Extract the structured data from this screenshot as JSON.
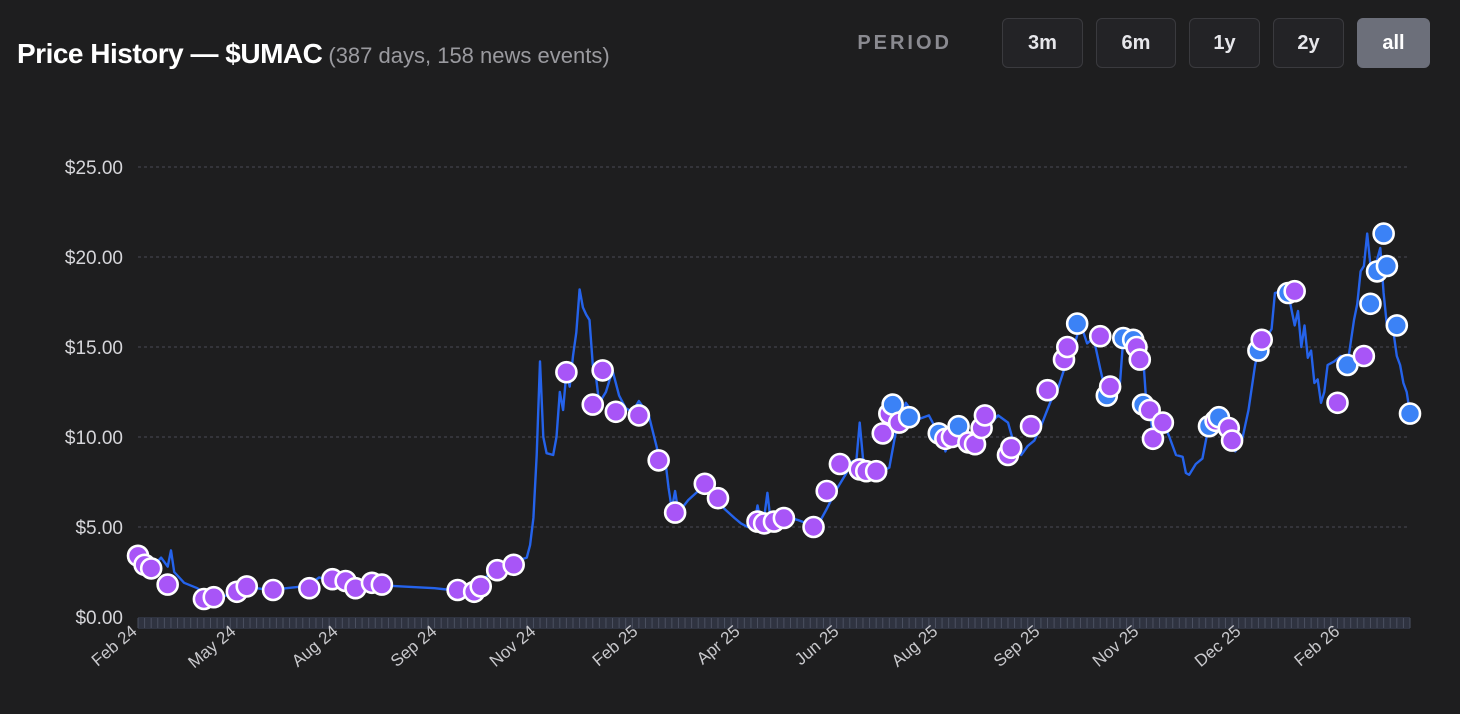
{
  "header": {
    "title": "Price History — $UMAC",
    "subtitle": "(387 days, 158 news events)"
  },
  "period": {
    "label": "PERIOD",
    "options": [
      "3m",
      "6m",
      "1y",
      "2y",
      "all"
    ],
    "selected": "all"
  },
  "colors": {
    "background": "#1e1e1f",
    "line": "#2563eb",
    "marker_purple": "#a855f7",
    "marker_blue": "#3b82f6",
    "marker_stroke": "#ffffff",
    "grid": "#4a4a55"
  },
  "chart_data": {
    "type": "line",
    "ylim": [
      0,
      25
    ],
    "yticks": [
      {
        "value": 0,
        "label": "$0.00"
      },
      {
        "value": 5,
        "label": "$5.00"
      },
      {
        "value": 10,
        "label": "$10.00"
      },
      {
        "value": 15,
        "label": "$15.00"
      },
      {
        "value": 20,
        "label": "$20.00"
      },
      {
        "value": 25,
        "label": "$25.00"
      }
    ],
    "xticks": [
      {
        "index": 0,
        "label": "Feb 24"
      },
      {
        "index": 30,
        "label": "May 24"
      },
      {
        "index": 61,
        "label": "Aug 24"
      },
      {
        "index": 91,
        "label": "Sep 24"
      },
      {
        "index": 121,
        "label": "Nov 24"
      },
      {
        "index": 152,
        "label": "Feb 25"
      },
      {
        "index": 183,
        "label": "Apr 25"
      },
      {
        "index": 213,
        "label": "Jun 25"
      },
      {
        "index": 243,
        "label": "Aug 25"
      },
      {
        "index": 274,
        "label": "Sep 25"
      },
      {
        "index": 304,
        "label": "Nov 25"
      },
      {
        "index": 335,
        "label": "Dec 25"
      },
      {
        "index": 365,
        "label": "Feb 26"
      }
    ],
    "x_count": 387,
    "line": [
      [
        0,
        3.5
      ],
      [
        3,
        3.2
      ],
      [
        5,
        2.9
      ],
      [
        7,
        3.3
      ],
      [
        9,
        2.8
      ],
      [
        10,
        3.7
      ],
      [
        11,
        2.5
      ],
      [
        14,
        1.9
      ],
      [
        18,
        1.6
      ],
      [
        21,
        1.2
      ],
      [
        24,
        1.1
      ],
      [
        27,
        1.2
      ],
      [
        30,
        1.5
      ],
      [
        33,
        1.8
      ],
      [
        36,
        1.6
      ],
      [
        40,
        1.5
      ],
      [
        45,
        1.6
      ],
      [
        50,
        1.7
      ],
      [
        52,
        1.8
      ],
      [
        55,
        2.2
      ],
      [
        58,
        2.0
      ],
      [
        62,
        1.7
      ],
      [
        66,
        1.9
      ],
      [
        70,
        1.8
      ],
      [
        80,
        1.7
      ],
      [
        90,
        1.6
      ],
      [
        95,
        1.5
      ],
      [
        98,
        1.5
      ],
      [
        103,
        1.8
      ],
      [
        108,
        2.6
      ],
      [
        113,
        3.0
      ],
      [
        118,
        3.3
      ],
      [
        119,
        4.0
      ],
      [
        120,
        5.5
      ],
      [
        121,
        9.0
      ],
      [
        122,
        14.2
      ],
      [
        123,
        10.0
      ],
      [
        124,
        9.1
      ],
      [
        126,
        9.0
      ],
      [
        127,
        10.0
      ],
      [
        128,
        12.5
      ],
      [
        129,
        11.5
      ],
      [
        130,
        13.6
      ],
      [
        131,
        12.8
      ],
      [
        132,
        14.5
      ],
      [
        133,
        15.8
      ],
      [
        134,
        18.2
      ],
      [
        135,
        17.2
      ],
      [
        136,
        16.8
      ],
      [
        137,
        16.5
      ],
      [
        138,
        14.0
      ],
      [
        139,
        13.3
      ],
      [
        140,
        11.8
      ],
      [
        141,
        12.2
      ],
      [
        142,
        12.5
      ],
      [
        144,
        13.7
      ],
      [
        146,
        12.3
      ],
      [
        148,
        11.6
      ],
      [
        150,
        11.4
      ],
      [
        152,
        12.0
      ],
      [
        155,
        11.2
      ],
      [
        158,
        9.0
      ],
      [
        160,
        8.7
      ],
      [
        161,
        7.2
      ],
      [
        162,
        6.0
      ],
      [
        163,
        7.0
      ],
      [
        164,
        5.8
      ],
      [
        167,
        6.5
      ],
      [
        170,
        7.0
      ],
      [
        172,
        7.4
      ],
      [
        175,
        6.7
      ],
      [
        178,
        6.0
      ],
      [
        181,
        5.5
      ],
      [
        183,
        5.2
      ],
      [
        185,
        5.0
      ],
      [
        187,
        5.1
      ],
      [
        188,
        6.2
      ],
      [
        189,
        5.3
      ],
      [
        190,
        5.5
      ],
      [
        191,
        6.9
      ],
      [
        192,
        5.3
      ],
      [
        195,
        5.4
      ],
      [
        198,
        5.5
      ],
      [
        200,
        5.4
      ],
      [
        203,
        5.2
      ],
      [
        206,
        5.0
      ],
      [
        209,
        6.0
      ],
      [
        212,
        7.1
      ],
      [
        215,
        8.0
      ],
      [
        216,
        8.6
      ],
      [
        218,
        8.7
      ],
      [
        219,
        10.8
      ],
      [
        220,
        8.8
      ],
      [
        221,
        8.5
      ],
      [
        223,
        8.3
      ],
      [
        226,
        8.1
      ],
      [
        228,
        8.3
      ],
      [
        230,
        10.3
      ],
      [
        232,
        11.3
      ],
      [
        233,
        11.9
      ],
      [
        235,
        11.4
      ],
      [
        237,
        11.0
      ],
      [
        240,
        11.2
      ],
      [
        242,
        10.5
      ],
      [
        244,
        10.1
      ],
      [
        245,
        9.2
      ],
      [
        247,
        10.0
      ],
      [
        249,
        10.2
      ],
      [
        251,
        10.6
      ],
      [
        253,
        10.0
      ],
      [
        255,
        9.7
      ],
      [
        257,
        10.0
      ],
      [
        259,
        10.8
      ],
      [
        261,
        11.2
      ],
      [
        264,
        10.8
      ],
      [
        266,
        9.5
      ],
      [
        268,
        9.0
      ],
      [
        270,
        9.5
      ],
      [
        272,
        9.8
      ],
      [
        274,
        10.6
      ],
      [
        277,
        12.0
      ],
      [
        279,
        12.6
      ],
      [
        282,
        14.3
      ],
      [
        284,
        15.0
      ],
      [
        286,
        16.3
      ],
      [
        288,
        15.2
      ],
      [
        290,
        15.5
      ],
      [
        292,
        13.8
      ],
      [
        293,
        13.0
      ],
      [
        294,
        12.3
      ],
      [
        295,
        12.9
      ],
      [
        296,
        12.1
      ],
      [
        298,
        13.0
      ],
      [
        299,
        15.5
      ],
      [
        301,
        15.5
      ],
      [
        303,
        15.2
      ],
      [
        305,
        14.5
      ],
      [
        306,
        11.8
      ],
      [
        307,
        11.5
      ],
      [
        308,
        10.0
      ],
      [
        309,
        10.3
      ],
      [
        311,
        10.9
      ],
      [
        313,
        10.0
      ],
      [
        315,
        9.0
      ],
      [
        317,
        8.9
      ],
      [
        318,
        8.0
      ],
      [
        319,
        7.9
      ],
      [
        321,
        8.5
      ],
      [
        323,
        8.8
      ],
      [
        325,
        10.7
      ],
      [
        327,
        11.0
      ],
      [
        329,
        10.5
      ],
      [
        331,
        10.0
      ],
      [
        333,
        9.2
      ],
      [
        335,
        9.8
      ],
      [
        337,
        11.5
      ],
      [
        339,
        14.0
      ],
      [
        340,
        14.8
      ],
      [
        342,
        15.4
      ],
      [
        344,
        16.0
      ],
      [
        345,
        18.0
      ],
      [
        347,
        18.1
      ],
      [
        349,
        18.0
      ],
      [
        351,
        16.2
      ],
      [
        352,
        17.0
      ],
      [
        353,
        15.0
      ],
      [
        354,
        16.2
      ],
      [
        355,
        14.4
      ],
      [
        356,
        14.8
      ],
      [
        357,
        13.0
      ],
      [
        358,
        13.2
      ],
      [
        359,
        11.9
      ],
      [
        360,
        12.5
      ],
      [
        361,
        14.0
      ],
      [
        363,
        14.2
      ],
      [
        365,
        14.5
      ],
      [
        367,
        14.0
      ],
      [
        369,
        16.5
      ],
      [
        370,
        17.4
      ],
      [
        371,
        19.2
      ],
      [
        372,
        19.5
      ],
      [
        373,
        21.3
      ],
      [
        374,
        19.5
      ],
      [
        375,
        19.2
      ],
      [
        377,
        20.5
      ],
      [
        378,
        18.0
      ],
      [
        379,
        16.2
      ],
      [
        381,
        15.8
      ],
      [
        382,
        14.5
      ],
      [
        383,
        14.0
      ],
      [
        384,
        13.0
      ],
      [
        385,
        12.5
      ],
      [
        386,
        11.3
      ]
    ],
    "events": [
      [
        0,
        3.4,
        "p"
      ],
      [
        2,
        2.9,
        "p"
      ],
      [
        4,
        2.7,
        "p"
      ],
      [
        9,
        1.8,
        "p"
      ],
      [
        20,
        1.0,
        "p"
      ],
      [
        23,
        1.1,
        "p"
      ],
      [
        30,
        1.4,
        "p"
      ],
      [
        33,
        1.7,
        "p"
      ],
      [
        41,
        1.5,
        "p"
      ],
      [
        52,
        1.6,
        "p"
      ],
      [
        59,
        2.1,
        "p"
      ],
      [
        63,
        2.0,
        "p"
      ],
      [
        66,
        1.6,
        "p"
      ],
      [
        71,
        1.9,
        "p"
      ],
      [
        74,
        1.8,
        "p"
      ],
      [
        97,
        1.5,
        "p"
      ],
      [
        102,
        1.4,
        "p"
      ],
      [
        104,
        1.7,
        "p"
      ],
      [
        109,
        2.6,
        "p"
      ],
      [
        114,
        2.9,
        "p"
      ],
      [
        130,
        13.6,
        "p"
      ],
      [
        138,
        11.8,
        "p"
      ],
      [
        141,
        13.7,
        "p"
      ],
      [
        145,
        11.4,
        "p"
      ],
      [
        152,
        11.2,
        "p"
      ],
      [
        158,
        8.7,
        "p"
      ],
      [
        163,
        5.8,
        "p"
      ],
      [
        172,
        7.4,
        "p"
      ],
      [
        176,
        6.6,
        "p"
      ],
      [
        188,
        5.3,
        "p"
      ],
      [
        190,
        5.2,
        "p"
      ],
      [
        193,
        5.3,
        "p"
      ],
      [
        196,
        5.5,
        "p"
      ],
      [
        205,
        5.0,
        "p"
      ],
      [
        209,
        7.0,
        "p"
      ],
      [
        213,
        8.5,
        "p"
      ],
      [
        219,
        8.2,
        "p"
      ],
      [
        221,
        8.1,
        "p"
      ],
      [
        224,
        8.1,
        "p"
      ],
      [
        226,
        10.2,
        "p"
      ],
      [
        228,
        11.3,
        "p"
      ],
      [
        229,
        11.8,
        "b"
      ],
      [
        231,
        10.8,
        "p"
      ],
      [
        234,
        11.1,
        "b"
      ],
      [
        243,
        10.2,
        "b"
      ],
      [
        245,
        9.9,
        "p"
      ],
      [
        247,
        10.0,
        "p"
      ],
      [
        249,
        10.6,
        "b"
      ],
      [
        252,
        9.7,
        "p"
      ],
      [
        254,
        9.6,
        "p"
      ],
      [
        256,
        10.5,
        "p"
      ],
      [
        257,
        11.2,
        "p"
      ],
      [
        264,
        9.0,
        "p"
      ],
      [
        265,
        9.4,
        "p"
      ],
      [
        271,
        10.6,
        "p"
      ],
      [
        276,
        12.6,
        "p"
      ],
      [
        281,
        14.3,
        "p"
      ],
      [
        282,
        15.0,
        "p"
      ],
      [
        285,
        16.3,
        "b"
      ],
      [
        292,
        15.6,
        "p"
      ],
      [
        294,
        12.3,
        "b"
      ],
      [
        295,
        12.8,
        "p"
      ],
      [
        299,
        15.5,
        "b"
      ],
      [
        302,
        15.4,
        "b"
      ],
      [
        303,
        15.0,
        "p"
      ],
      [
        304,
        14.3,
        "p"
      ],
      [
        305,
        11.8,
        "b"
      ],
      [
        307,
        11.5,
        "p"
      ],
      [
        308,
        9.9,
        "p"
      ],
      [
        311,
        10.8,
        "p"
      ],
      [
        325,
        10.6,
        "b"
      ],
      [
        327,
        10.9,
        "p"
      ],
      [
        328,
        11.1,
        "b"
      ],
      [
        331,
        10.5,
        "p"
      ],
      [
        332,
        9.8,
        "p"
      ],
      [
        340,
        14.8,
        "b"
      ],
      [
        341,
        15.4,
        "p"
      ],
      [
        349,
        18.0,
        "b"
      ],
      [
        351,
        18.1,
        "p"
      ],
      [
        364,
        11.9,
        "p"
      ],
      [
        367,
        14.0,
        "b"
      ],
      [
        372,
        14.5,
        "p"
      ],
      [
        374,
        17.4,
        "b"
      ],
      [
        376,
        19.2,
        "b"
      ],
      [
        378,
        21.3,
        "b"
      ],
      [
        379,
        19.5,
        "b"
      ],
      [
        382,
        16.2,
        "b"
      ],
      [
        386,
        11.3,
        "b"
      ]
    ]
  }
}
